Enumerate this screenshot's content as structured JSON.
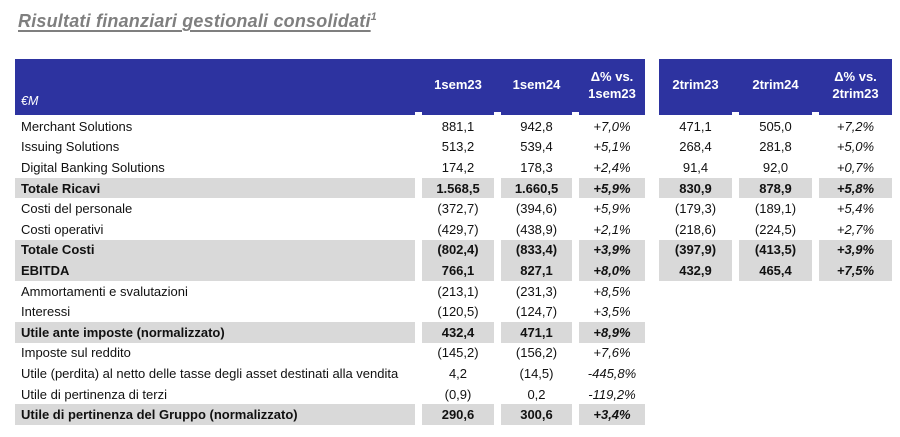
{
  "title": {
    "text": "Risultati finanziari gestionali consolidati",
    "footnote_marker": "1"
  },
  "table": {
    "unit_label": "€M",
    "column_groups": [
      {
        "headers": [
          "1sem23",
          "1sem24",
          "Δ% vs. 1sem23"
        ]
      },
      {
        "headers": [
          "2trim23",
          "2trim24",
          "Δ% vs. 2trim23"
        ]
      }
    ],
    "rows": [
      {
        "label": "Merchant Solutions",
        "values": [
          "881,1",
          "942,8",
          "+7,0%",
          "471,1",
          "505,0",
          "+7,2%"
        ]
      },
      {
        "label": "Issuing Solutions",
        "values": [
          "513,2",
          "539,4",
          "+5,1%",
          "268,4",
          "281,8",
          "+5,0%"
        ]
      },
      {
        "label": "Digital Banking Solutions",
        "values": [
          "174,2",
          "178,3",
          "+2,4%",
          "91,4",
          "92,0",
          "+0,7%"
        ]
      },
      {
        "label": "Totale Ricavi",
        "values": [
          "1.568,5",
          "1.660,5",
          "+5,9%",
          "830,9",
          "878,9",
          "+5,8%"
        ]
      },
      {
        "label": "Costi del personale",
        "values": [
          "(372,7)",
          "(394,6)",
          "+5,9%",
          "(179,3)",
          "(189,1)",
          "+5,4%"
        ]
      },
      {
        "label": "Costi operativi",
        "values": [
          "(429,7)",
          "(438,9)",
          "+2,1%",
          "(218,6)",
          "(224,5)",
          "+2,7%"
        ]
      },
      {
        "label": "Totale Costi",
        "values": [
          "(802,4)",
          "(833,4)",
          "+3,9%",
          "(397,9)",
          "(413,5)",
          "+3,9%"
        ]
      },
      {
        "label": "EBITDA",
        "values": [
          "766,1",
          "827,1",
          "+8,0%",
          "432,9",
          "465,4",
          "+7,5%"
        ]
      },
      {
        "label": "Ammortamenti e svalutazioni",
        "values": [
          "(213,1)",
          "(231,3)",
          "+8,5%"
        ]
      },
      {
        "label": "Interessi",
        "values": [
          "(120,5)",
          "(124,7)",
          "+3,5%"
        ]
      },
      {
        "label": "Utile ante imposte (normalizzato)",
        "values": [
          "432,4",
          "471,1",
          "+8,9%"
        ]
      },
      {
        "label": "Imposte sul reddito",
        "values": [
          "(145,2)",
          "(156,2)",
          "+7,6%"
        ]
      },
      {
        "label": "Utile (perdita) al netto delle tasse degli asset destinati alla vendita",
        "values": [
          "4,2",
          "(14,5)",
          "-445,8%"
        ]
      },
      {
        "label": "Utile di pertinenza di terzi",
        "values": [
          "(0,9)",
          "0,2",
          "-119,2%"
        ]
      },
      {
        "label": "Utile di pertinenza del Gruppo (normalizzato)",
        "values": [
          "290,6",
          "300,6",
          "+3,4%"
        ]
      }
    ]
  },
  "colors": {
    "header_blue": "#2D33A0",
    "row_highlight_gray": "#D9D9D9",
    "title_gray": "#7F7F7F",
    "text": "#111111"
  }
}
